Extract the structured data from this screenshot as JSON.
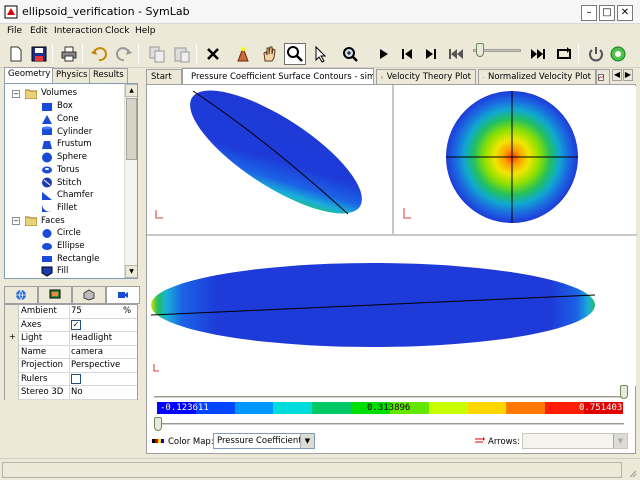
{
  "window": {
    "title": "ellipsoid_verification - SymLab"
  },
  "menu": [
    "File",
    "Edit",
    "Interaction",
    "Clock",
    "Help"
  ],
  "toolbar": {
    "icons": [
      "new-file-icon",
      "save-icon",
      "print-icon",
      "undo-icon",
      "redo-icon",
      "copy-icon",
      "paste-icon",
      "delete-icon",
      "lamp-icon",
      "pan-hand-icon",
      "zoom-icon",
      "select-arrow-icon",
      "zoom-region-icon",
      "play-icon",
      "step-back-icon",
      "step-forward-icon",
      "rewind-icon",
      "fast-forward-icon",
      "loop-icon",
      "power-icon",
      "record-icon"
    ]
  },
  "left_tabs": [
    "Geometry",
    "Physics",
    "Results"
  ],
  "tree": {
    "volumes_label": "Volumes",
    "volumes": [
      "Box",
      "Cone",
      "Cylinder",
      "Frustum",
      "Sphere",
      "Torus",
      "Stitch",
      "Chamfer",
      "Fillet"
    ],
    "faces_label": "Faces",
    "faces": [
      "Circle",
      "Ellipse",
      "Rectangle",
      "Fill"
    ]
  },
  "properties": [
    {
      "key": "Ambient",
      "value": "75",
      "unit": "%"
    },
    {
      "key": "Axes",
      "value": "",
      "checkbox": true,
      "checked": true
    },
    {
      "key": "Light",
      "value": "Headlight",
      "expand": true
    },
    {
      "key": "Name",
      "value": "camera"
    },
    {
      "key": "Projection",
      "value": "Perspective"
    },
    {
      "key": "Rulers",
      "value": "",
      "checkbox": true,
      "checked": false
    },
    {
      "key": "Stereo 3D",
      "value": "No"
    }
  ],
  "doc_tabs": [
    {
      "label": "Start",
      "active": false
    },
    {
      "label": "Pressure Coefficient Surface Contours - sim",
      "active": true
    },
    {
      "label": "Velocity Theory Plot",
      "active": false
    },
    {
      "label": "Normalized Velocity Plot",
      "active": false
    }
  ],
  "colorbar": {
    "min_label": "-0.123611",
    "mid_label": "0.313896",
    "max_label": "0.751403",
    "colors": [
      "#0000ff",
      "#0046ff",
      "#0096ff",
      "#00dcdc",
      "#00c864",
      "#00e000",
      "#64e600",
      "#c8ff00",
      "#ffd700",
      "#ff7800",
      "#ff1e00",
      "#e00000"
    ]
  },
  "color_map": {
    "label": "Color Map:",
    "value": "Pressure Coefficient"
  },
  "arrows": {
    "label": "Arrows:",
    "value": ""
  },
  "accent": "#0000c8"
}
